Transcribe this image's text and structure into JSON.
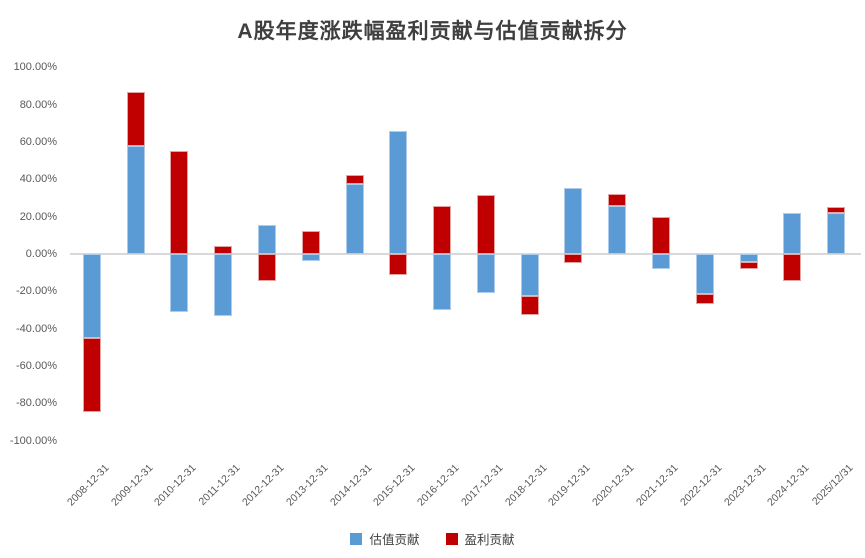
{
  "chart_data": {
    "type": "bar",
    "stacked": true,
    "title": "A股年度涨跌幅盈利贡献与估值贡献拆分",
    "xlabel": "",
    "ylabel": "",
    "ylim": [
      -100,
      100
    ],
    "grid": false,
    "legend_position": "bottom",
    "background": "#ffffff",
    "zero_line_color": "#d9d9d9",
    "axis_label_color": "#595959",
    "title_color": "#3f3f3f",
    "categories": [
      "2008-12-31",
      "2009-12-31",
      "2010-12-31",
      "2011-12-31",
      "2012-12-31",
      "2013-12-31",
      "2014-12-31",
      "2015-12-31",
      "2016-12-31",
      "2017-12-31",
      "2018-12-31",
      "2019-12-31",
      "2020-12-31",
      "2021-12-31",
      "2022-12-31",
      "2023-12-31",
      "2024-12-31",
      "2025/12/31"
    ],
    "series": [
      {
        "name": "估值贡献",
        "color": "#5b9bd5",
        "border_color": "#aecbeb",
        "values": [
          -45.0,
          57.8,
          -31.0,
          -33.0,
          15.5,
          -3.9,
          37.4,
          65.6,
          -30.2,
          -20.9,
          -22.7,
          35.3,
          25.5,
          -8.0,
          -21.4,
          -4.4,
          21.8,
          22.2
        ]
      },
      {
        "name": "盈利贡献",
        "color": "#c00000",
        "border_color": "#e2a3a1",
        "values": [
          -39.5,
          28.7,
          55.0,
          4.3,
          -14.4,
          12.2,
          4.8,
          -11.2,
          25.8,
          31.5,
          -10.0,
          -4.8,
          6.4,
          19.7,
          -5.6,
          -3.6,
          -14.6,
          3.0
        ]
      }
    ],
    "y_axis": {
      "ticks": [
        {
          "label": "100.00%",
          "value": 100
        },
        {
          "label": "80.00%",
          "value": 80
        },
        {
          "label": "60.00%",
          "value": 60
        },
        {
          "label": "40.00%",
          "value": 40
        },
        {
          "label": "20.00%",
          "value": 20
        },
        {
          "label": "0.00%",
          "value": 0
        },
        {
          "label": "-20.00%",
          "value": -20
        },
        {
          "label": "-40.00%",
          "value": -40
        },
        {
          "label": "-60.00%",
          "value": -60
        },
        {
          "label": "-80.00%",
          "value": -80
        },
        {
          "label": "-100.00%",
          "value": -100
        }
      ]
    }
  }
}
